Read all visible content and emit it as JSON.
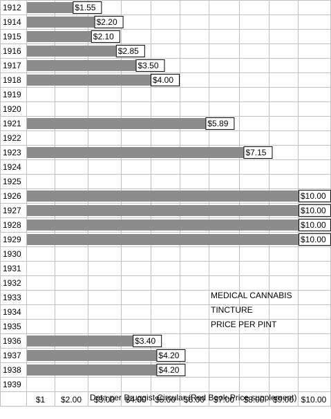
{
  "chart_data": {
    "type": "bar",
    "orientation": "horizontal",
    "categories": [
      "1912",
      "1914",
      "1915",
      "1916",
      "1917",
      "1918",
      "1919",
      "1920",
      "1921",
      "1922",
      "1923",
      "1924",
      "1925",
      "1926",
      "1927",
      "1928",
      "1929",
      "1930",
      "1931",
      "1932",
      "1933",
      "1934",
      "1935",
      "1936",
      "1937",
      "1938",
      "1939"
    ],
    "values": [
      1.55,
      2.2,
      2.1,
      2.85,
      3.5,
      4.0,
      null,
      null,
      5.89,
      null,
      7.15,
      null,
      null,
      10.0,
      10.0,
      10.0,
      10.0,
      null,
      null,
      null,
      null,
      null,
      null,
      3.4,
      4.2,
      4.2,
      null
    ],
    "value_labels": [
      "$1.55",
      "$2.20",
      "$2.10",
      "$2.85",
      "$3.50",
      "$4.00",
      "",
      "",
      "$5.89",
      "",
      "$7.15",
      "",
      "",
      "$10.00",
      "$10.00",
      "$10.00",
      "$10.00",
      "",
      "",
      "",
      "",
      "",
      "",
      "$3.40",
      "$4.20",
      "$4.20",
      ""
    ],
    "x_ticks": [
      "$1",
      "$2.00",
      "$3.00",
      "$4.00",
      "$5.00",
      "$6.00",
      "$7.00",
      "$8.00",
      "$9.00",
      "$10.00"
    ],
    "xlim": [
      0,
      10
    ],
    "grid": true,
    "bar_color": "#8c8c8c",
    "annotations": [
      "MEDICAL CANNABIS",
      "TINCTURE",
      "PRICE PER PINT"
    ],
    "footnote": "Data per Druggist Circular (Red Book-Price supplement)"
  }
}
